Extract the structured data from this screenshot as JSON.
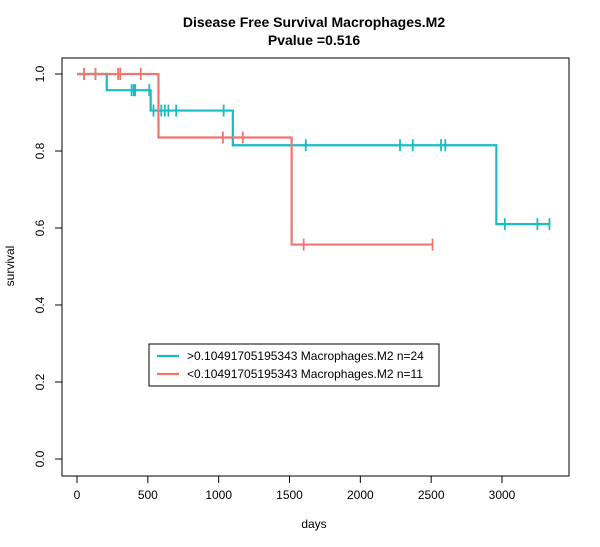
{
  "chart_data": {
    "type": "line",
    "title": "Disease Free Survival Macrophages.M2",
    "subtitle": "Pvalue =0.516",
    "xlabel": "days",
    "ylabel": "survival",
    "xlim": [
      0,
      3350
    ],
    "ylim": [
      0,
      1.0
    ],
    "x_ticks": [
      0,
      500,
      1000,
      1500,
      2000,
      2500,
      3000
    ],
    "y_ticks": [
      0.0,
      0.2,
      0.4,
      0.6,
      0.8,
      1.0
    ],
    "x_tick_labels": [
      "0",
      "500",
      "1000",
      "1500",
      "2000",
      "2500",
      "3000"
    ],
    "y_tick_labels": [
      "0.0",
      "0.2",
      "0.4",
      "0.6",
      "0.8",
      "1.0"
    ],
    "grid": false,
    "legend_position": "bottom-left",
    "series": [
      {
        "name": ">0.10491705195343 Macrophages.M2 n=24",
        "color": "#18BDC2",
        "steps": [
          [
            0,
            1.0
          ],
          [
            210,
            0.958
          ],
          [
            520,
            0.905
          ],
          [
            1100,
            0.815
          ],
          [
            2960,
            0.61
          ],
          [
            3335,
            0.61
          ]
        ],
        "censor_times": [
          50,
          130,
          385,
          400,
          410,
          510,
          540,
          595,
          620,
          645,
          700,
          1035,
          1615,
          2280,
          2370,
          2570,
          2600,
          3020,
          3250,
          3335
        ]
      },
      {
        "name": "<0.10491705195343 Macrophages.M2 n=11",
        "color": "#F0756F",
        "steps": [
          [
            0,
            1.0
          ],
          [
            575,
            0.835
          ],
          [
            1515,
            0.557
          ],
          [
            2510,
            0.557
          ]
        ],
        "censor_times": [
          50,
          130,
          290,
          305,
          450,
          1030,
          1170,
          1600,
          2510
        ]
      }
    ]
  }
}
